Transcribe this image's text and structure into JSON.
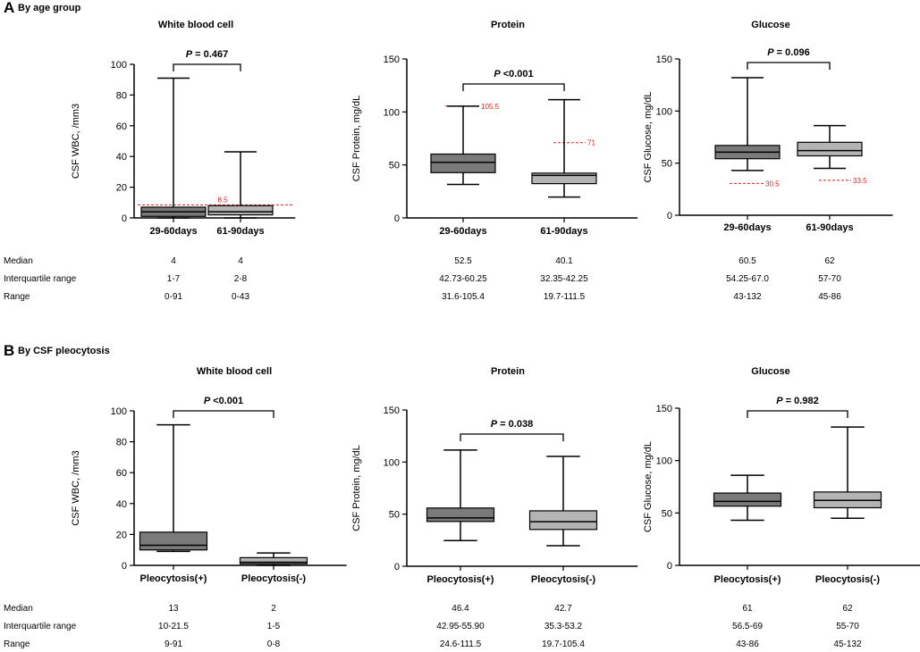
{
  "chart_data": [
    {
      "type": "boxplot",
      "panel": "A",
      "panel_title": "By age group",
      "title": "White blood cell",
      "ylabel": "CSF WBC, /mm3",
      "ylim": [
        0,
        100
      ],
      "yticks": [
        0,
        20,
        40,
        60,
        80,
        100
      ],
      "categories": [
        "29-60days",
        "61-90days"
      ],
      "boxes": [
        {
          "min": 0,
          "q1": 1,
          "median": 4,
          "q3": 7,
          "max": 91
        },
        {
          "min": 0,
          "q1": 2,
          "median": 4,
          "q3": 8,
          "max": 43
        }
      ],
      "p_label": "P",
      "p_value": "= 0.467",
      "reference_lines": [
        {
          "value": 8.5,
          "label": "8.5",
          "span": "both"
        }
      ],
      "table": {
        "median": [
          "4",
          "4"
        ],
        "iqr": [
          "1-7",
          "2-8"
        ],
        "range": [
          "0-91",
          "0-43"
        ]
      }
    },
    {
      "type": "boxplot",
      "panel": "A",
      "title": "Protein",
      "ylabel": "CSF Protein, mg/dL",
      "ylim": [
        0,
        150
      ],
      "yticks": [
        0,
        50,
        100,
        150
      ],
      "categories": [
        "29-60days",
        "61-90days"
      ],
      "boxes": [
        {
          "min": 31.6,
          "q1": 42.73,
          "median": 52.5,
          "q3": 60.25,
          "max": 105.4
        },
        {
          "min": 19.7,
          "q1": 32.35,
          "median": 40.1,
          "q3": 42.25,
          "max": 111.5
        }
      ],
      "p_label": "P",
      "p_value": "<0.001",
      "reference_lines": [
        {
          "value": 105.5,
          "label": "105.5",
          "span": "first"
        },
        {
          "value": 71,
          "label": "71",
          "span": "second"
        }
      ],
      "table": {
        "median": [
          "52.5",
          "40.1"
        ],
        "iqr": [
          "42.73-60.25",
          "32.35-42.25"
        ],
        "range": [
          "31.6-105.4",
          "19.7-111.5"
        ]
      }
    },
    {
      "type": "boxplot",
      "panel": "A",
      "title": "Glucose",
      "ylabel": "CSF Glucose, mg/dL",
      "ylim": [
        0,
        150
      ],
      "yticks": [
        0,
        50,
        100,
        150
      ],
      "categories": [
        "29-60days",
        "61-90days"
      ],
      "boxes": [
        {
          "min": 43,
          "q1": 54.25,
          "median": 60.5,
          "q3": 67,
          "max": 132
        },
        {
          "min": 45,
          "q1": 57,
          "median": 62,
          "q3": 70,
          "max": 86
        }
      ],
      "p_label": "P",
      "p_value": "= 0.096",
      "reference_lines": [
        {
          "value": 30.5,
          "label": "30.5",
          "span": "first"
        },
        {
          "value": 33.5,
          "label": "33.5",
          "span": "second"
        }
      ],
      "table": {
        "median": [
          "60.5",
          "62"
        ],
        "iqr": [
          "54.25-67.0",
          "57-70"
        ],
        "range": [
          "43-132",
          "45-86"
        ]
      }
    },
    {
      "type": "boxplot",
      "panel": "B",
      "panel_title": "By CSF pleocytosis",
      "title": "White blood cell",
      "ylabel": "CSF WBC, /mm3",
      "ylim": [
        0,
        100
      ],
      "yticks": [
        0,
        20,
        40,
        60,
        80,
        100
      ],
      "categories": [
        "Pleocytosis(+)",
        "Pleocytosis(-)"
      ],
      "boxes": [
        {
          "min": 9,
          "q1": 10,
          "median": 13,
          "q3": 21.5,
          "max": 91
        },
        {
          "min": 0,
          "q1": 1,
          "median": 2,
          "q3": 5,
          "max": 8
        }
      ],
      "p_label": "P",
      "p_value": "<0.001",
      "reference_lines": [],
      "table": {
        "median": [
          "13",
          "2"
        ],
        "iqr": [
          "10-21.5",
          "1-5"
        ],
        "range": [
          "9-91",
          "0-8"
        ]
      }
    },
    {
      "type": "boxplot",
      "panel": "B",
      "title": "Protein",
      "ylabel": "CSF Protein, mg/dL",
      "ylim": [
        0,
        150
      ],
      "yticks": [
        0,
        50,
        100,
        150
      ],
      "categories": [
        "Pleocytosis(+)",
        "Pleocytosis(-)"
      ],
      "boxes": [
        {
          "min": 24.6,
          "q1": 42.95,
          "median": 46.4,
          "q3": 55.9,
          "max": 111.5
        },
        {
          "min": 19.7,
          "q1": 35.3,
          "median": 42.7,
          "q3": 53.2,
          "max": 105.4
        }
      ],
      "p_label": "P",
      "p_value": "= 0.038",
      "reference_lines": [],
      "table": {
        "median": [
          "46.4",
          "42.7"
        ],
        "iqr": [
          "42.95-55.90",
          "35.3-53.2"
        ],
        "range": [
          "24.6-111.5",
          "19.7-105.4"
        ]
      }
    },
    {
      "type": "boxplot",
      "panel": "B",
      "title": "Glucose",
      "ylabel": "CSF Glucose, mg/dL",
      "ylim": [
        0,
        150
      ],
      "yticks": [
        0,
        50,
        100,
        150
      ],
      "categories": [
        "Pleocytosis(+)",
        "Pleocytosis(-)"
      ],
      "boxes": [
        {
          "min": 43,
          "q1": 56.5,
          "median": 61,
          "q3": 69,
          "max": 86
        },
        {
          "min": 45,
          "q1": 55,
          "median": 62,
          "q3": 70,
          "max": 132
        }
      ],
      "p_label": "P",
      "p_value": "= 0.982",
      "reference_lines": [],
      "table": {
        "median": [
          "61",
          "62"
        ],
        "iqr": [
          "56.5-69",
          "55-70"
        ],
        "range": [
          "43-86",
          "45-132"
        ]
      }
    }
  ],
  "panels": {
    "A": {
      "letter": "A",
      "title": "By age group"
    },
    "B": {
      "letter": "B",
      "title": "By CSF pleocytosis"
    }
  },
  "row_labels": {
    "median": "Median",
    "iqr": "Interquartile range",
    "range": "Range"
  },
  "colors": {
    "box_first": "#7a7a7a",
    "box_second": "#b4b4b4",
    "reference_line": "#e02020",
    "axis": "#000000"
  }
}
